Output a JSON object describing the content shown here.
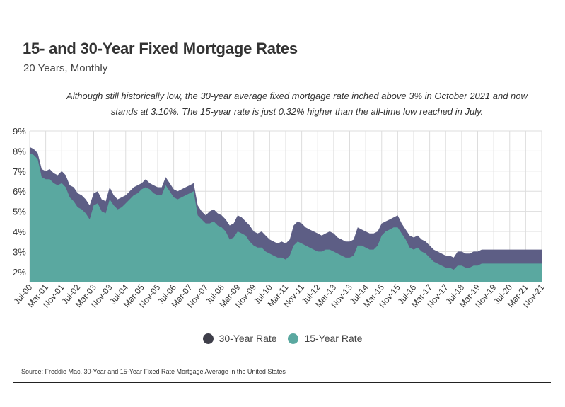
{
  "title": "15- and 30-Year Fixed Mortgage Rates",
  "subtitle": "20 Years, Monthly",
  "annotation_line1": "Although still historically low, the 30-year average fixed mortgage rate inched above 3% in October 2021 and now",
  "annotation_line2": "stands at 3.10%. The 15-year rate is just 0.32% higher than the all-time low reached in July.",
  "source": "Source:  Freddie Mac, 30-Year  and 15-Year Fixed Rate Mortgage Average in the United States",
  "colors": {
    "rate30": "#5d5e85",
    "rate15": "#5aa8a0",
    "legend30": "#3f3f4a",
    "legend15": "#5aa8a0"
  },
  "chart_data": {
    "type": "area",
    "title": "15- and 30-Year Fixed Mortgage Rates",
    "xlabel": "",
    "ylabel": "",
    "ylim": [
      1.5,
      9.0
    ],
    "y_ticks": [
      "2%",
      "3%",
      "4%",
      "5%",
      "6%",
      "7%",
      "8%",
      "9%"
    ],
    "y_tick_values": [
      2,
      3,
      4,
      5,
      6,
      7,
      8,
      9
    ],
    "x_ticks": [
      "Jul-00",
      "Mar-01",
      "Nov-01",
      "Jul-02",
      "Mar-03",
      "Nov-03",
      "Jul-04",
      "Mar-05",
      "Nov-05",
      "Jul-06",
      "Mar-07",
      "Nov-07",
      "Jul-08",
      "Mar-09",
      "Nov-09",
      "Jul-10",
      "Mar-11",
      "Nov-11",
      "Jul-12",
      "Mar-13",
      "Nov-13",
      "Jul-14",
      "Mar-15",
      "Nov-15",
      "Jul-16",
      "Mar-17",
      "Nov-17",
      "Jul-18",
      "Mar-19",
      "Nov-19",
      "Jul-20",
      "Mar-21",
      "Nov-21"
    ],
    "grid": true,
    "legend": "bottom-center",
    "series": [
      {
        "name": "30-Year Rate",
        "key_months": [
          0,
          2,
          4,
          6,
          8,
          10,
          12,
          14,
          16,
          18,
          20,
          22,
          24,
          26,
          28,
          30,
          32,
          34,
          36,
          38,
          40,
          42,
          44,
          46,
          48,
          50,
          52,
          54,
          56,
          58,
          60,
          62,
          64,
          66,
          68,
          70,
          72,
          74,
          76,
          78,
          80,
          82,
          84,
          86,
          88,
          90,
          92,
          94,
          96,
          98,
          100,
          102,
          104,
          106,
          108,
          110,
          112,
          114,
          116,
          118,
          120,
          122,
          124,
          126,
          128,
          130,
          132,
          134,
          136,
          138,
          140,
          142,
          144,
          146,
          148,
          150,
          152,
          154,
          156,
          158,
          160,
          162,
          164,
          166,
          168,
          170,
          172,
          174,
          176,
          178,
          180,
          182,
          184,
          186,
          188,
          190,
          192,
          194,
          196,
          198,
          200,
          202,
          204,
          206,
          208,
          210,
          212,
          214,
          216,
          218,
          220,
          222,
          224,
          226,
          228,
          230,
          232,
          234,
          236,
          238,
          240,
          242,
          244,
          246,
          248,
          250,
          252,
          254,
          256,
          258,
          260,
          262,
          264,
          266
        ],
        "values": [
          8.2,
          8.1,
          7.9,
          7.1,
          7.0,
          7.1,
          6.9,
          6.8,
          7.0,
          6.8,
          6.3,
          6.2,
          5.9,
          5.8,
          5.6,
          5.3,
          5.9,
          6.0,
          5.6,
          5.5,
          6.2,
          5.8,
          5.6,
          5.7,
          5.8,
          6.0,
          6.2,
          6.3,
          6.4,
          6.6,
          6.4,
          6.3,
          6.2,
          6.2,
          6.7,
          6.4,
          6.1,
          6.0,
          6.1,
          6.2,
          6.3,
          6.4,
          5.3,
          5.0,
          4.8,
          5.0,
          5.1,
          4.9,
          4.8,
          4.6,
          4.3,
          4.4,
          4.8,
          4.7,
          4.5,
          4.3,
          4.0,
          3.9,
          4.0,
          3.8,
          3.6,
          3.5,
          3.4,
          3.5,
          3.4,
          3.6,
          4.3,
          4.5,
          4.4,
          4.2,
          4.1,
          4.0,
          3.9,
          3.8,
          3.9,
          4.0,
          3.9,
          3.7,
          3.6,
          3.5,
          3.5,
          3.6,
          4.2,
          4.1,
          4.0,
          3.9,
          3.9,
          4.0,
          4.4,
          4.5,
          4.6,
          4.7,
          4.8,
          4.4,
          4.1,
          3.8,
          3.7,
          3.8,
          3.6,
          3.5,
          3.3,
          3.1,
          3.0,
          2.9,
          2.8,
          2.8,
          2.7,
          3.0,
          3.0,
          2.9,
          2.9,
          3.0,
          3.0,
          3.1,
          3.1,
          3.1,
          3.1,
          3.1,
          3.1,
          3.1,
          3.1,
          3.1,
          3.1,
          3.1,
          3.1,
          3.1,
          3.1,
          3.1,
          3.1,
          3.1,
          3.1,
          3.1,
          3.1,
          3.1
        ]
      },
      {
        "name": "15-Year Rate",
        "key_months": [
          0,
          2,
          4,
          6,
          8,
          10,
          12,
          14,
          16,
          18,
          20,
          22,
          24,
          26,
          28,
          30,
          32,
          34,
          36,
          38,
          40,
          42,
          44,
          46,
          48,
          50,
          52,
          54,
          56,
          58,
          60,
          62,
          64,
          66,
          68,
          70,
          72,
          74,
          76,
          78,
          80,
          82,
          84,
          86,
          88,
          90,
          92,
          94,
          96,
          98,
          100,
          102,
          104,
          106,
          108,
          110,
          112,
          114,
          116,
          118,
          120,
          122,
          124,
          126,
          128,
          130,
          132,
          134,
          136,
          138,
          140,
          142,
          144,
          146,
          148,
          150,
          152,
          154,
          156,
          158,
          160,
          162,
          164,
          166,
          168,
          170,
          172,
          174,
          176,
          178,
          180,
          182,
          184,
          186,
          188,
          190,
          192,
          194,
          196,
          198,
          200,
          202,
          204,
          206,
          208,
          210,
          212,
          214,
          216,
          218,
          220,
          222,
          224,
          226,
          228,
          230,
          232,
          234,
          236,
          238,
          240,
          242,
          244,
          246,
          248,
          250,
          252,
          254,
          256,
          258,
          260,
          262,
          264,
          266
        ],
        "values": [
          7.9,
          7.8,
          7.6,
          6.7,
          6.6,
          6.6,
          6.4,
          6.3,
          6.4,
          6.2,
          5.7,
          5.5,
          5.2,
          5.1,
          4.9,
          4.6,
          5.3,
          5.4,
          5.0,
          4.9,
          5.6,
          5.3,
          5.1,
          5.2,
          5.4,
          5.6,
          5.8,
          5.9,
          6.1,
          6.2,
          6.1,
          5.9,
          5.8,
          5.8,
          6.3,
          6.0,
          5.7,
          5.6,
          5.7,
          5.8,
          5.9,
          6.0,
          4.8,
          4.6,
          4.4,
          4.4,
          4.5,
          4.3,
          4.2,
          4.0,
          3.6,
          3.7,
          4.0,
          3.9,
          3.8,
          3.5,
          3.3,
          3.2,
          3.2,
          3.0,
          2.9,
          2.8,
          2.7,
          2.7,
          2.6,
          2.8,
          3.3,
          3.5,
          3.4,
          3.3,
          3.2,
          3.1,
          3.0,
          3.0,
          3.1,
          3.1,
          3.0,
          2.9,
          2.8,
          2.7,
          2.7,
          2.8,
          3.3,
          3.3,
          3.2,
          3.1,
          3.1,
          3.3,
          3.8,
          4.0,
          4.1,
          4.2,
          4.2,
          3.9,
          3.6,
          3.2,
          3.1,
          3.2,
          3.0,
          2.9,
          2.7,
          2.5,
          2.4,
          2.3,
          2.2,
          2.2,
          2.1,
          2.3,
          2.3,
          2.2,
          2.2,
          2.3,
          2.3,
          2.4,
          2.4,
          2.4,
          2.4,
          2.4,
          2.4,
          2.4,
          2.4,
          2.4,
          2.4,
          2.4,
          2.4,
          2.4,
          2.4,
          2.4,
          2.4,
          2.4,
          2.4,
          2.4,
          2.4,
          2.4
        ]
      }
    ]
  },
  "legend": {
    "item30": "30-Year Rate",
    "item15": "15-Year Rate"
  }
}
